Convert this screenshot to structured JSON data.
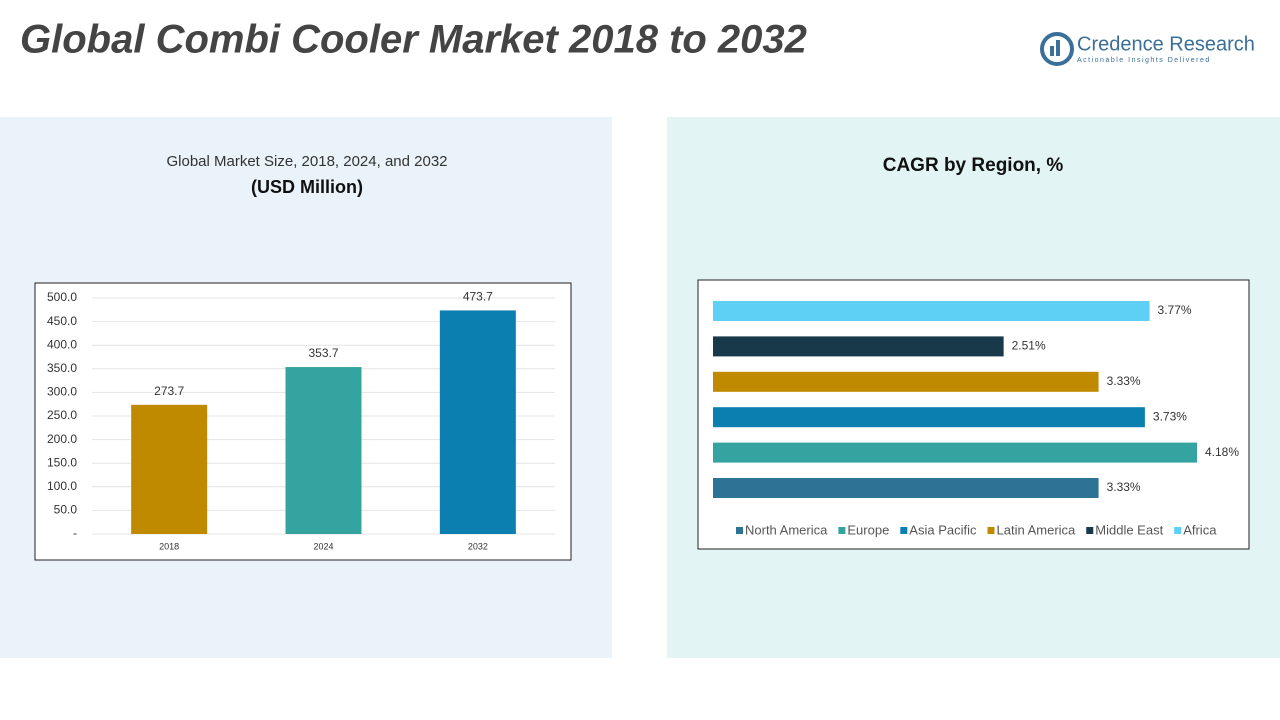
{
  "header": {
    "title": "Global Combi Cooler Market 2018 to 2032",
    "brand": "Credence Research",
    "tagline": "Actionable Insights Delivered"
  },
  "chart_data": [
    {
      "type": "bar",
      "title": "Global Market Size, 2018, 2024, and 2032",
      "subtitle": "(USD Million)",
      "categories": [
        "2018",
        "2024",
        "2032"
      ],
      "values": [
        273.7,
        353.7,
        473.7
      ],
      "colors": [
        "#c08a00",
        "#35a3a0",
        "#0a7fb0"
      ],
      "ylim": [
        0,
        500
      ],
      "yticks": [
        {
          "value": 0,
          "label": "-"
        },
        {
          "value": 50,
          "label": "50.0"
        },
        {
          "value": 100,
          "label": "100.0"
        },
        {
          "value": 150,
          "label": "150.0"
        },
        {
          "value": 200,
          "label": "200.0"
        },
        {
          "value": 250,
          "label": "250.0"
        },
        {
          "value": 300,
          "label": "300.0"
        },
        {
          "value": 350,
          "label": "350.0"
        },
        {
          "value": 400,
          "label": "400.0"
        },
        {
          "value": 450,
          "label": "450.0"
        },
        {
          "value": 500,
          "label": "500.0"
        }
      ],
      "grid": true
    },
    {
      "type": "barh",
      "title": "CAGR by Region, %",
      "categories": [
        "North America",
        "Europe",
        "Asia Pacific",
        "Latin America",
        "Middle East",
        "Africa"
      ],
      "values": [
        3.33,
        4.18,
        3.73,
        3.33,
        2.51,
        3.77
      ],
      "value_labels": [
        "3.33%",
        "4.18%",
        "3.73%",
        "3.33%",
        "2.51%",
        "3.77%"
      ],
      "colors": [
        "#2e7396",
        "#35a3a0",
        "#0a7fb0",
        "#c08a00",
        "#17394a",
        "#5fd0f5"
      ],
      "legend": "bottom"
    }
  ]
}
